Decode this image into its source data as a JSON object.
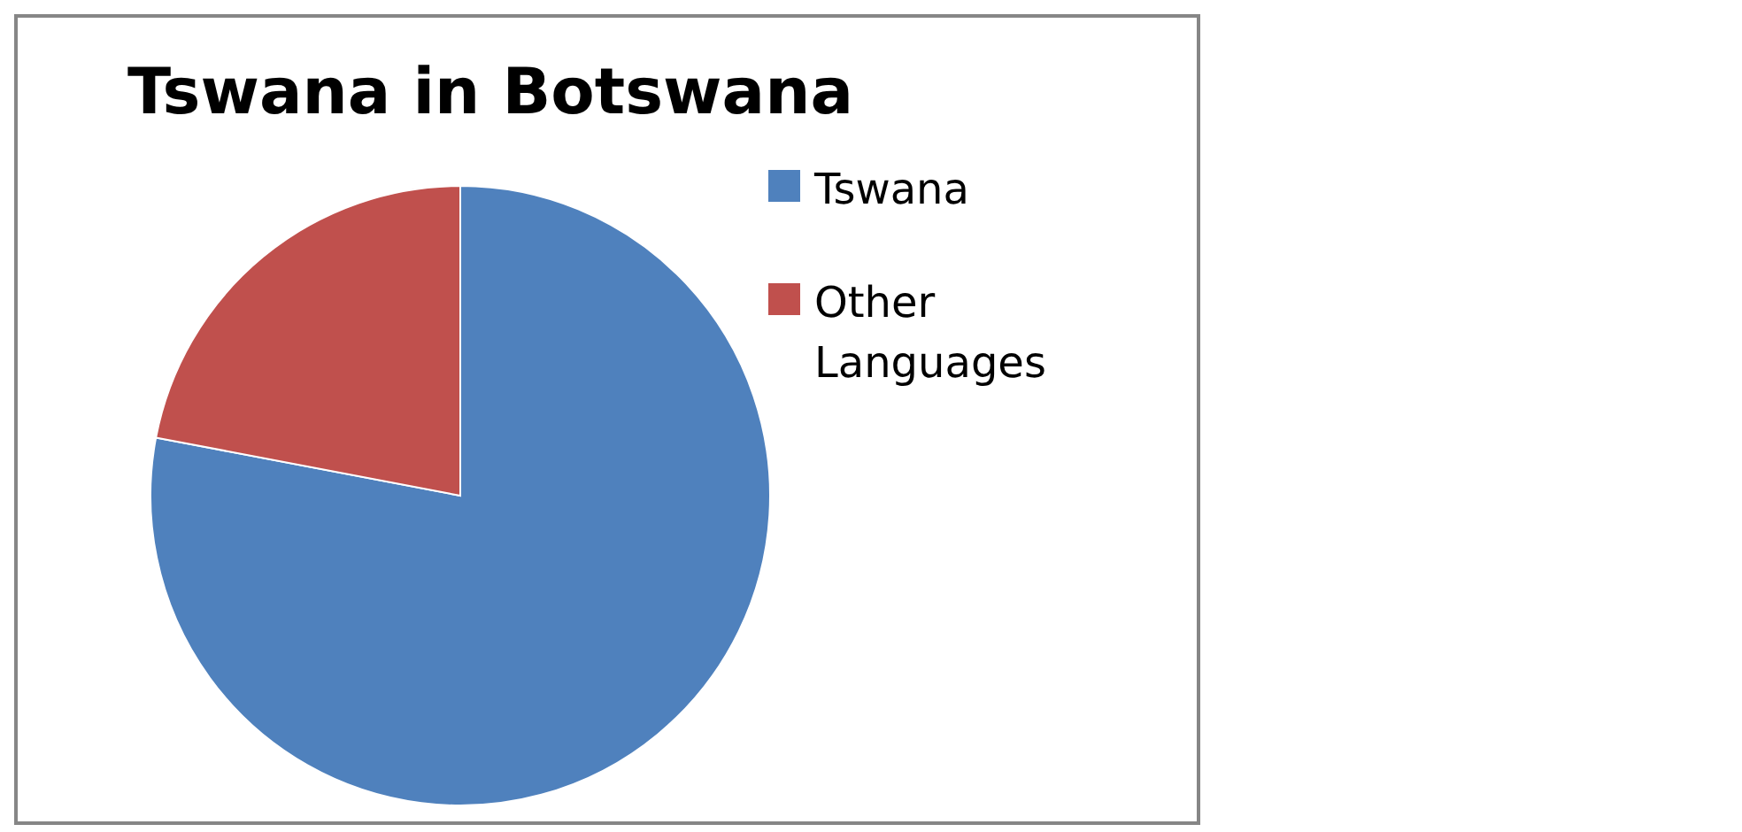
{
  "chart_data": {
    "type": "pie",
    "title": "Tswana in Botswana",
    "categories": [
      "Tswana",
      "Other Languages"
    ],
    "values": [
      78,
      22
    ],
    "colors": [
      "#4f81bd",
      "#c0504d"
    ],
    "legend": "right"
  }
}
